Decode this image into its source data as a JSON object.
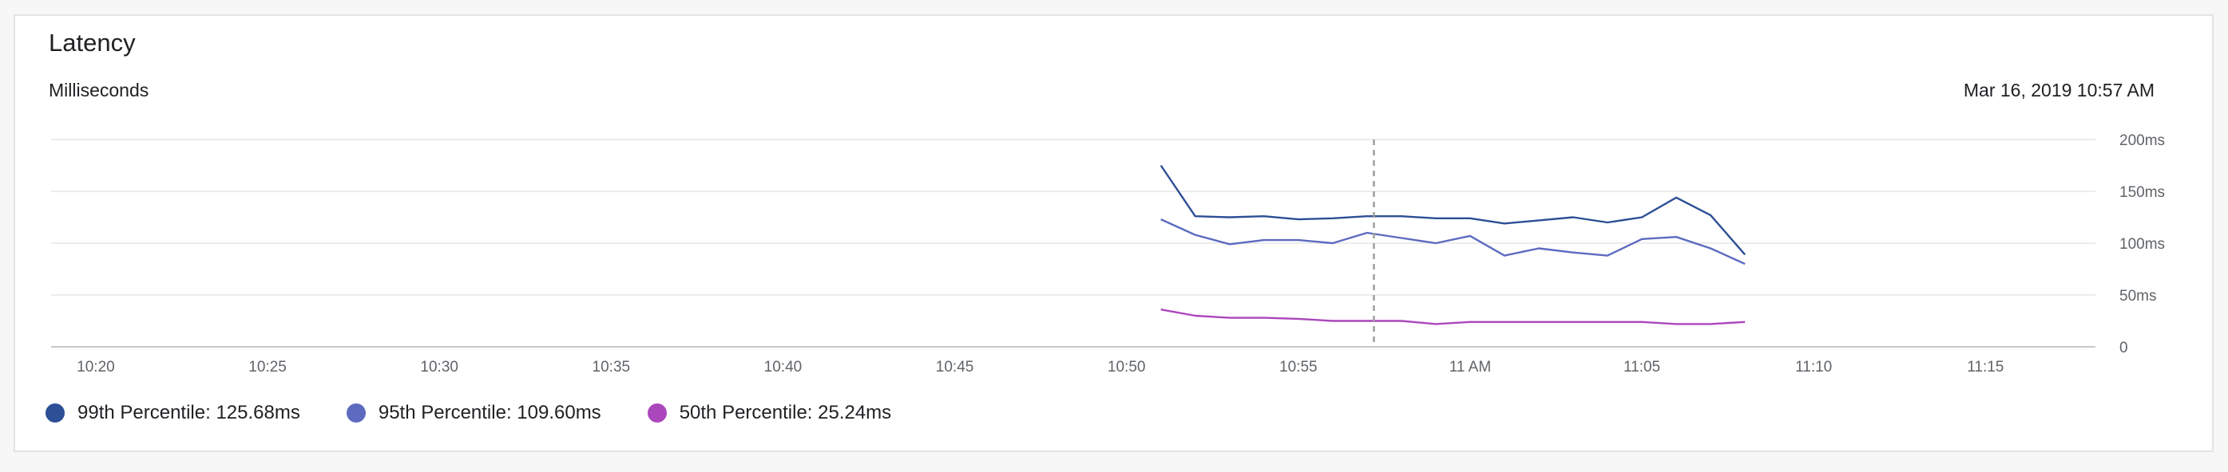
{
  "card": {
    "title": "Latency",
    "unit_label": "Milliseconds",
    "timestamp": "Mar 16, 2019 10:57 AM"
  },
  "legend": [
    {
      "label": "99th Percentile: 125.68ms",
      "color": "#2c4f95"
    },
    {
      "label": "95th Percentile: 109.60ms",
      "color": "#5c6bc0"
    },
    {
      "label": "50th Percentile: 25.24ms",
      "color": "#ab47bc"
    }
  ],
  "chart_data": {
    "type": "line",
    "x_ticks": [
      "10:20",
      "10:25",
      "10:30",
      "10:35",
      "10:40",
      "10:45",
      "10:50",
      "10:55",
      "11 AM",
      "11:05",
      "11:10",
      "11:15"
    ],
    "x_tick_minutes": [
      20,
      25,
      30,
      35,
      40,
      45,
      50,
      55,
      60,
      65,
      70,
      75
    ],
    "x_range_minutes": [
      18.7,
      78.2
    ],
    "y_ticks": [
      {
        "value": 0,
        "label": "0"
      },
      {
        "value": 50,
        "label": "50ms"
      },
      {
        "value": 100,
        "label": "100ms"
      },
      {
        "value": 150,
        "label": "150ms"
      },
      {
        "value": 200,
        "label": "200ms"
      }
    ],
    "ylim": [
      0,
      200
    ],
    "grid": true,
    "cursor_minute": 57.2,
    "x_minutes": [
      51,
      52,
      53,
      54,
      55,
      56,
      57,
      58,
      59,
      60,
      61,
      62,
      63,
      64,
      65,
      66,
      67,
      68
    ],
    "series": [
      {
        "name": "99th Percentile",
        "color": "#2c4f95",
        "values": [
          175,
          126,
          125,
          126,
          123,
          124,
          126,
          126,
          124,
          124,
          119,
          122,
          125,
          120,
          125,
          144,
          127,
          89
        ]
      },
      {
        "name": "95th Percentile",
        "color": "#5c6bc0",
        "values": [
          123,
          108,
          99,
          103,
          103,
          100,
          110,
          105,
          100,
          107,
          88,
          95,
          91,
          88,
          104,
          106,
          95,
          80
        ]
      },
      {
        "name": "50th Percentile",
        "color": "#ab47bc",
        "values": [
          36,
          30,
          28,
          28,
          27,
          25,
          25,
          25,
          22,
          24,
          24,
          24,
          24,
          24,
          24,
          22,
          22,
          24
        ]
      }
    ]
  }
}
